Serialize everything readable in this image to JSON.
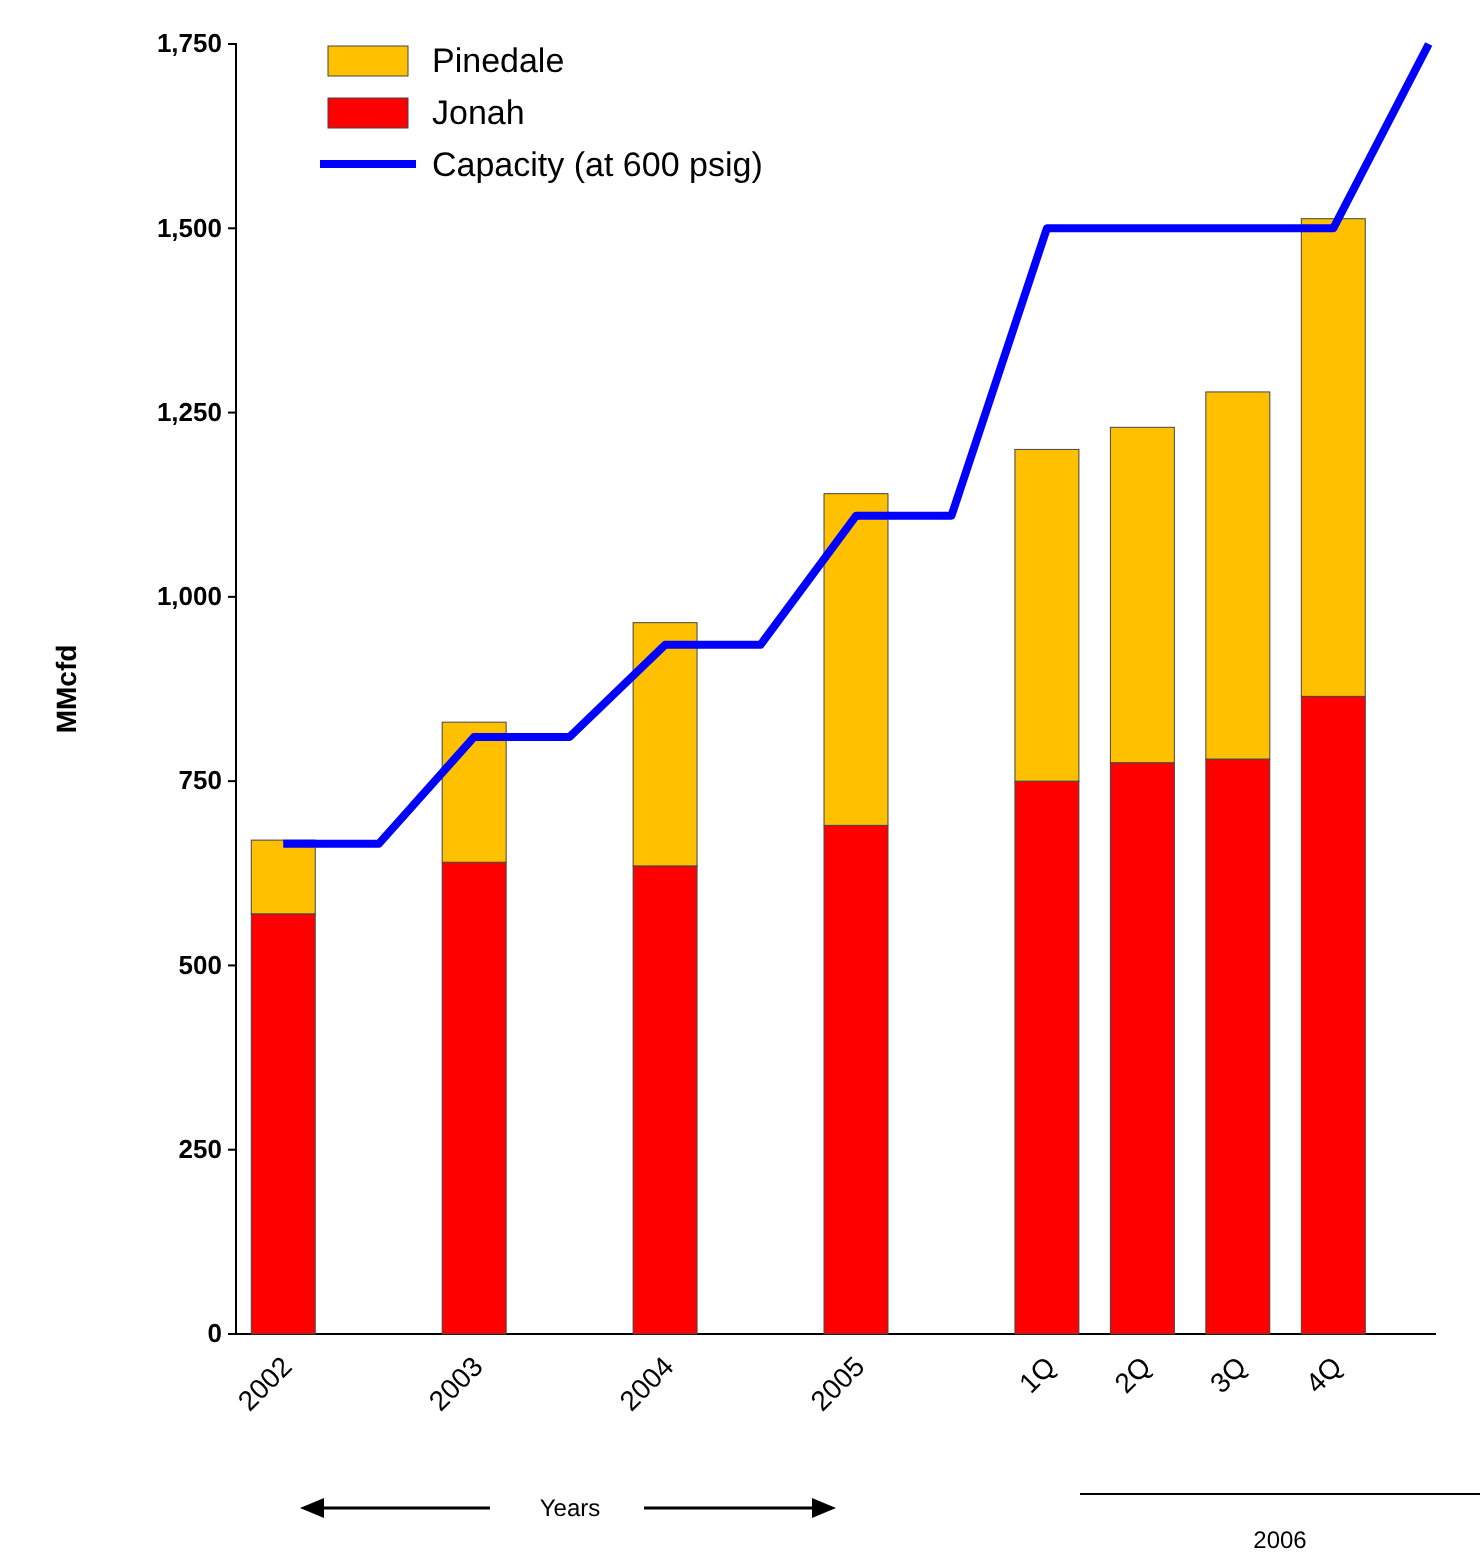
{
  "chart_data": {
    "type": "bar",
    "stacked": true,
    "ylabel": "MMcfd",
    "categories": [
      "2002",
      null,
      "2003",
      null,
      "2004",
      null,
      "2005",
      null,
      "1Q",
      "2Q",
      "3Q",
      "4Q",
      null
    ],
    "series": [
      {
        "name": "Jonah",
        "color": "#ff0000",
        "values": [
          570,
          null,
          640,
          null,
          635,
          null,
          690,
          null,
          750,
          775,
          780,
          865,
          null
        ]
      },
      {
        "name": "Pinedale",
        "color": "#ffc000",
        "values": [
          100,
          null,
          190,
          null,
          330,
          null,
          450,
          null,
          450,
          455,
          498,
          648,
          null
        ]
      },
      {
        "name": "Capacity (at 600 psig)",
        "type": "line",
        "color": "#0000ff",
        "values": [
          665,
          665,
          810,
          810,
          935,
          935,
          1110,
          1110,
          1500,
          1500,
          1500,
          1500,
          1750
        ]
      }
    ],
    "ylim": [
      0,
      1750
    ],
    "yticks": [
      {
        "value": 0,
        "label": "0"
      },
      {
        "value": 250,
        "label": "250"
      },
      {
        "value": 500,
        "label": "500"
      },
      {
        "value": 750,
        "label": "750"
      },
      {
        "value": 1000,
        "label": "1,000"
      },
      {
        "value": 1250,
        "label": "1,250"
      },
      {
        "value": 1500,
        "label": "1,500"
      },
      {
        "value": 1750,
        "label": "1,750"
      }
    ],
    "legend": "top left",
    "marker": "none",
    "annotations": [
      "Years",
      "2006"
    ]
  }
}
